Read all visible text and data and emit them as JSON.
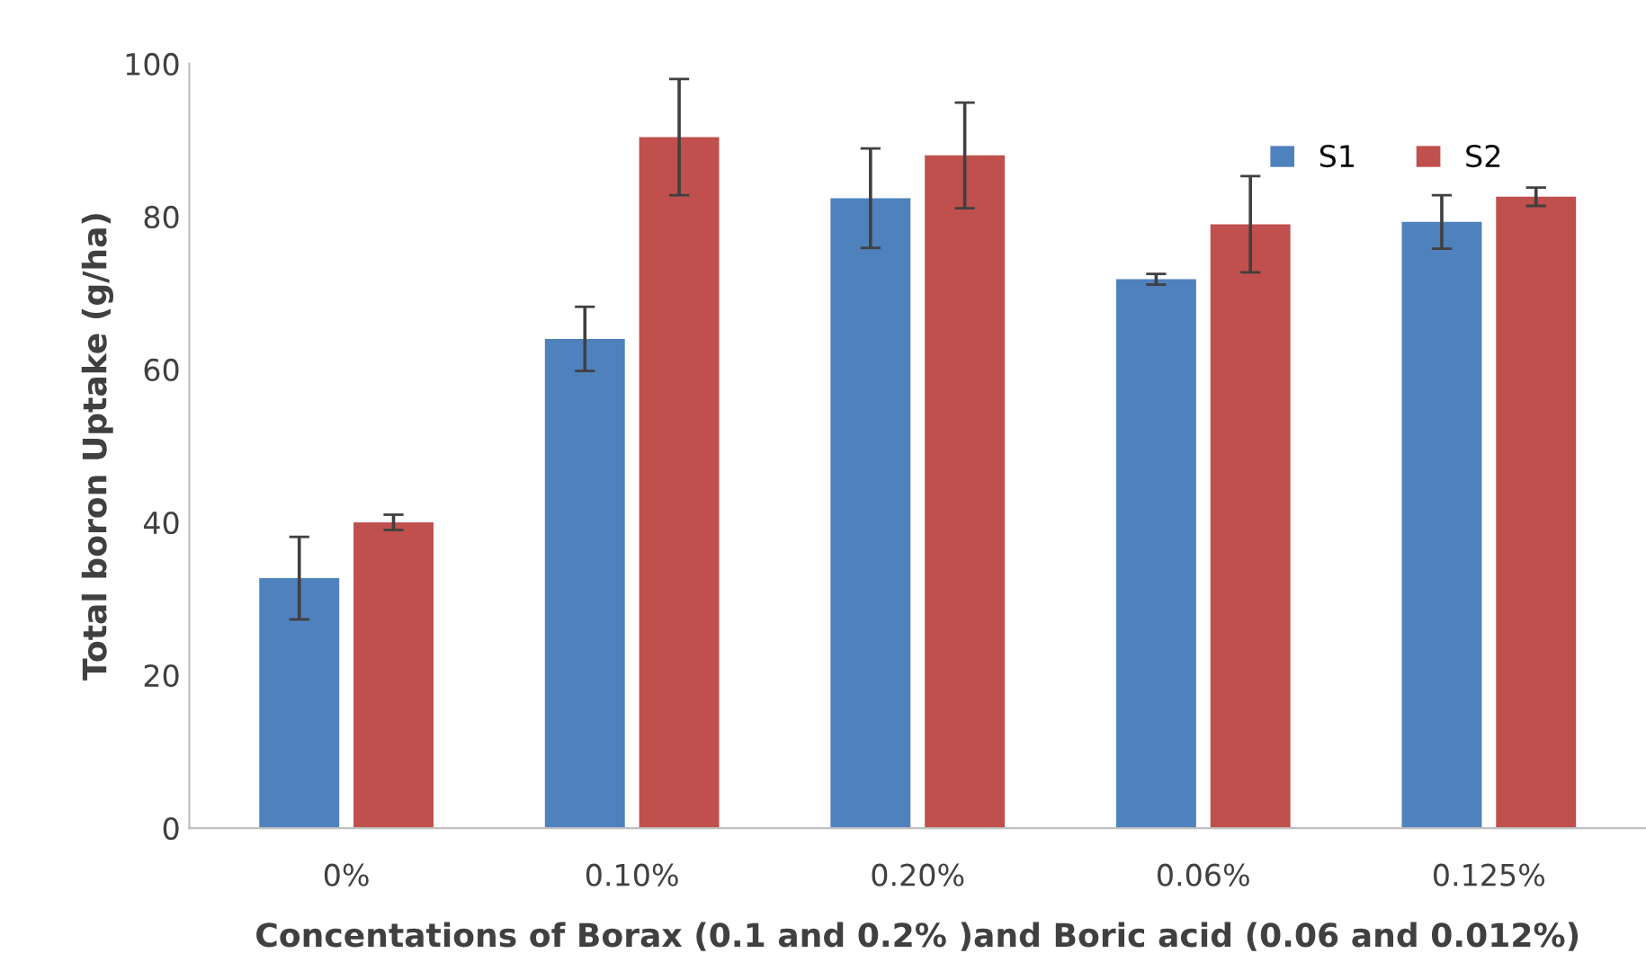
{
  "chart_data": {
    "type": "bar",
    "xlabel": "Concentations of Borax (0.1 and 0.2% )and Boric acid (0.06 and 0.012%)",
    "ylabel": "Total boron Uptake (g/ha)",
    "categories": [
      "0%",
      "0.10%",
      "0.20%",
      "0.06%",
      "0.125%"
    ],
    "series": [
      {
        "name": "S1",
        "color": "#4f81bd",
        "values": [
          32.7,
          64,
          82.4,
          71.8,
          79.3
        ],
        "errors": [
          5.4,
          4.2,
          6.5,
          0.7,
          3.5
        ]
      },
      {
        "name": "S2",
        "color": "#c0504d",
        "values": [
          40,
          90.4,
          88,
          79,
          82.6
        ],
        "errors": [
          1,
          7.6,
          6.9,
          6.3,
          1.2
        ]
      }
    ],
    "ylim": [
      0,
      100
    ],
    "yticks": [
      0,
      20,
      40,
      60,
      80,
      100
    ],
    "grid": false,
    "legend": "top right"
  }
}
